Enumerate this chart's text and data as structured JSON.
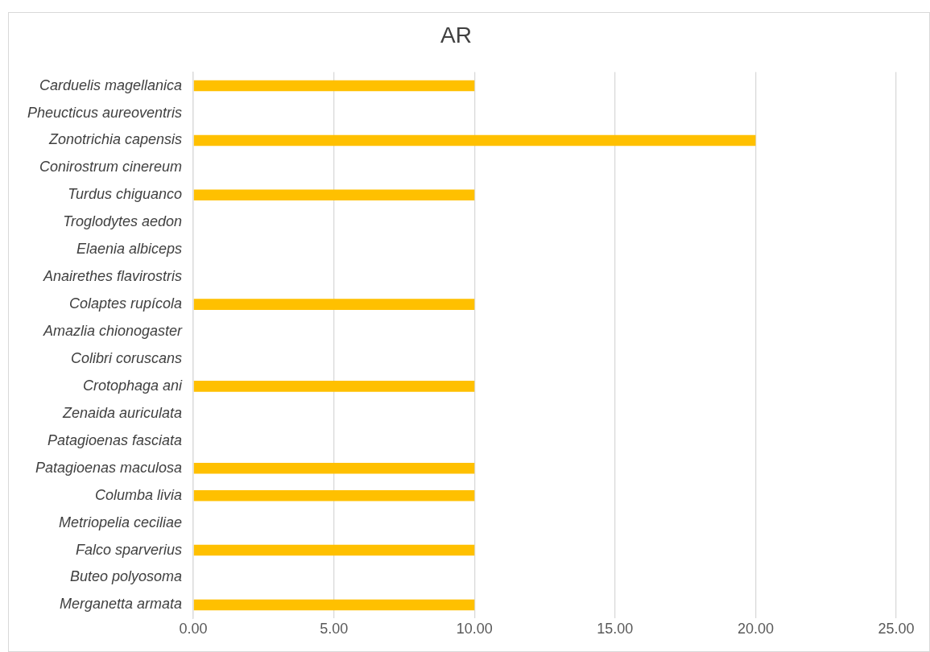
{
  "chart_data": {
    "type": "bar",
    "title": "AR",
    "orientation": "horizontal",
    "categories": [
      "Carduelis magellanica",
      "Pheucticus aureoventris",
      "Zonotrichia capensis",
      "Conirostrum cinereum",
      "Turdus chiguanco",
      "Troglodytes aedon",
      "Elaenia albiceps",
      "Anairethes flavirostris",
      "Colaptes rupícola",
      "Amazlia chionogaster",
      "Colibri coruscans",
      "Crotophaga ani",
      "Zenaida auriculata",
      "Patagioenas fasciata",
      "Patagioenas maculosa",
      "Columba livia",
      "Metriopelia ceciliae",
      "Falco sparverius",
      "Buteo polyosoma",
      "Merganetta armata"
    ],
    "values": [
      10,
      0,
      20,
      0,
      10,
      0,
      0,
      0,
      10,
      0,
      0,
      10,
      0,
      0,
      10,
      10,
      0,
      10,
      0,
      10
    ],
    "color": "#ffc000",
    "xlim": [
      0,
      25
    ],
    "xticks": [
      {
        "value": 0,
        "label": "0.00"
      },
      {
        "value": 5,
        "label": "5.00"
      },
      {
        "value": 10,
        "label": "10.00"
      },
      {
        "value": 15,
        "label": "15.00"
      },
      {
        "value": 20,
        "label": "20.00"
      },
      {
        "value": 25,
        "label": "25.00"
      }
    ],
    "grid": "x",
    "legend": false
  }
}
